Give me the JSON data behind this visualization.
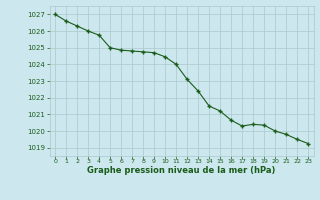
{
  "x": [
    0,
    1,
    2,
    3,
    4,
    5,
    6,
    7,
    8,
    9,
    10,
    11,
    12,
    13,
    14,
    15,
    16,
    17,
    18,
    19,
    20,
    21,
    22,
    23
  ],
  "y": [
    1027.0,
    1026.6,
    1026.3,
    1026.0,
    1025.75,
    1025.0,
    1024.85,
    1024.8,
    1024.75,
    1024.7,
    1024.45,
    1024.0,
    1023.1,
    1022.4,
    1021.5,
    1021.2,
    1020.65,
    1020.3,
    1020.4,
    1020.35,
    1020.0,
    1019.8,
    1019.5,
    1019.25
  ],
  "bg_color": "#cce8ee",
  "line_color": "#1a5c1a",
  "marker_color": "#1a5c1a",
  "grid_color": "#aac8cc",
  "xlabel": "Graphe pression niveau de la mer (hPa)",
  "xlabel_color": "#1a5c1a",
  "tick_color": "#1a5c1a",
  "ylim": [
    1018.5,
    1027.5
  ],
  "xlim": [
    -0.5,
    23.5
  ],
  "yticks": [
    1019,
    1020,
    1021,
    1022,
    1023,
    1024,
    1025,
    1026,
    1027
  ],
  "xticks": [
    0,
    1,
    2,
    3,
    4,
    5,
    6,
    7,
    8,
    9,
    10,
    11,
    12,
    13,
    14,
    15,
    16,
    17,
    18,
    19,
    20,
    21,
    22,
    23
  ],
  "linewidth": 0.8,
  "markersize": 2.5
}
